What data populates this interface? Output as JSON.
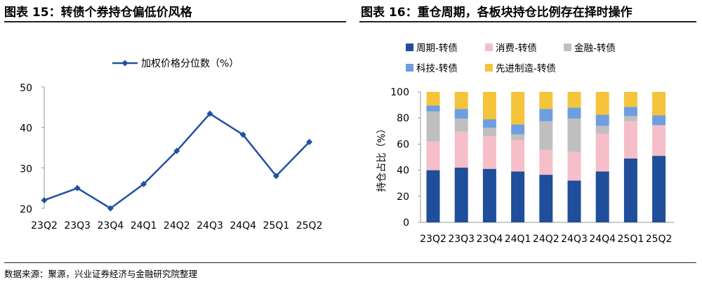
{
  "left_title": "图表 15：转债个券持仓偏低价风格",
  "right_title": "图表 16：重仓周期，各板块持仓比例存在择时操作",
  "source": "数据来源：聚源，兴业证券经济与金融研究院整理",
  "chart_data": [
    {
      "type": "line",
      "title": "图表 15：转债个券持仓偏低价风格",
      "categories": [
        "23Q2",
        "23Q3",
        "23Q4",
        "24Q1",
        "24Q2",
        "24Q3",
        "24Q4",
        "25Q1",
        "25Q2"
      ],
      "series": [
        {
          "name": "加权价格分位数（%）",
          "color": "#2151a3",
          "values": [
            22,
            25,
            20,
            26,
            34.2,
            43.4,
            38.2,
            28,
            36.4
          ]
        }
      ],
      "ylim": [
        20,
        50
      ],
      "yticks": [
        20,
        30,
        40,
        50
      ],
      "xlabel": "",
      "ylabel": "",
      "legend": "top-center",
      "grid": false
    },
    {
      "type": "bar",
      "stacked": true,
      "title": "图表 16：重仓周期，各板块持仓比例存在择时操作",
      "categories": [
        "23Q2",
        "23Q3",
        "23Q4",
        "24Q1",
        "24Q2",
        "24Q3",
        "24Q4",
        "25Q1",
        "25Q2"
      ],
      "series": [
        {
          "name": "周期-转债",
          "color": "#1f4e9b",
          "values": [
            40,
            42,
            41,
            39,
            36.5,
            32,
            39,
            49,
            51
          ]
        },
        {
          "name": "消费-转债",
          "color": "#f6bec9",
          "values": [
            22,
            27.5,
            25,
            24,
            19,
            22,
            29,
            28.5,
            23.5
          ]
        },
        {
          "name": "金融-转债",
          "color": "#bfbfbf",
          "values": [
            23,
            10,
            6.5,
            4.5,
            22,
            25.5,
            6,
            4,
            0
          ]
        },
        {
          "name": "科技-转债",
          "color": "#6e9edf",
          "values": [
            4.5,
            7.5,
            6.5,
            7.5,
            9.5,
            8.5,
            8.5,
            7,
            7.5
          ]
        },
        {
          "name": "先进制造-转债",
          "color": "#f5c43b",
          "values": [
            10.5,
            13,
            21,
            25,
            13,
            12,
            17.5,
            11.5,
            18
          ]
        }
      ],
      "ylim": [
        0,
        100
      ],
      "yticks": [
        0,
        20,
        40,
        60,
        80,
        100
      ],
      "xlabel": "",
      "ylabel": "持仓占比（%）",
      "legend": "top",
      "grid": false
    }
  ]
}
